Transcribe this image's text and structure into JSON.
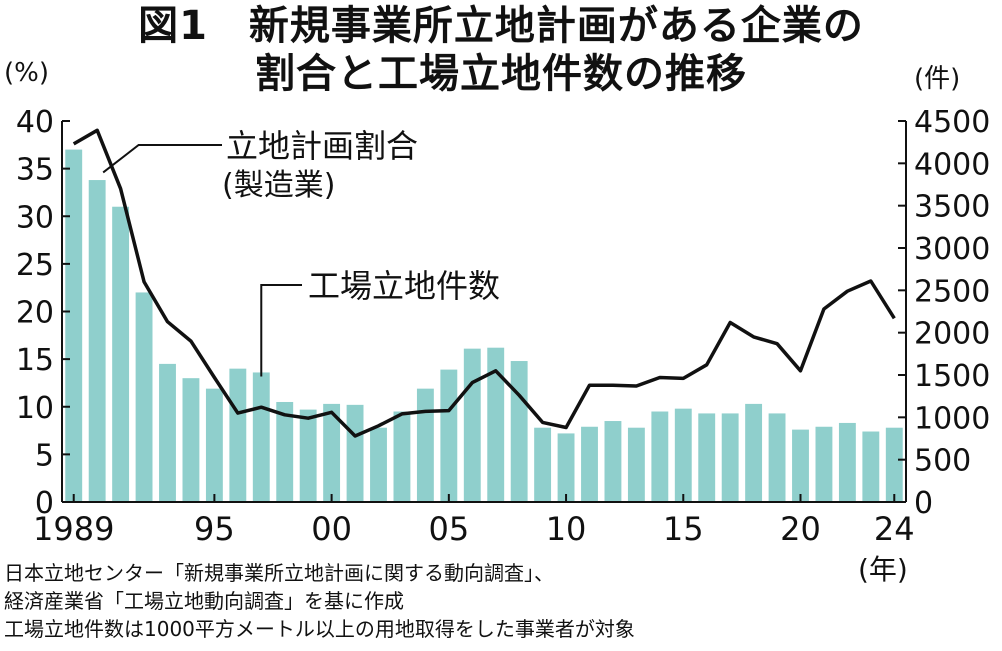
{
  "title_line1": "図1　新規事業所立地計画がある企業の",
  "title_line2": "割合と工場立地件数の推移",
  "left_unit": "(%)",
  "right_unit": "(件)",
  "year_unit": "(年)",
  "notes": [
    "日本立地センター「新規事業所立地計画に関する動向調査」、",
    "経済産業省「工場立地動向調査」を基に作成",
    "工場立地件数は1000平方メートル以上の用地取得をした事業者が対象"
  ],
  "colors": {
    "bar": "#8fcfcc",
    "line": "#111111",
    "axis": "#111111"
  },
  "chart_data": {
    "type": "bar+line",
    "x_tick_labels": [
      "1989",
      "95",
      "00",
      "05",
      "10",
      "15",
      "20",
      "24"
    ],
    "x_tick_years": [
      1989,
      1995,
      2000,
      2005,
      2010,
      2015,
      2020,
      2024
    ],
    "left_axis": {
      "ylim": [
        0,
        40
      ],
      "ticks": [
        0,
        5,
        10,
        15,
        20,
        25,
        30,
        35,
        40
      ]
    },
    "right_axis": {
      "ylim": [
        0,
        4500
      ],
      "ticks": [
        0,
        500,
        1000,
        1500,
        2000,
        2500,
        3000,
        3500,
        4000,
        4500
      ]
    },
    "series": [
      {
        "name": "立地計画割合\n(製造業)",
        "type": "bar",
        "axis": "left",
        "x": [
          1989,
          1990,
          1991,
          1992,
          1993,
          1994,
          1995,
          1996,
          1997,
          1998,
          1999,
          2000,
          2001,
          2002,
          2003,
          2004,
          2005,
          2006,
          2007,
          2008,
          2009,
          2010,
          2011,
          2012,
          2013,
          2014,
          2015,
          2016,
          2017,
          2018,
          2019,
          2020,
          2021,
          2022,
          2023,
          2024
        ],
        "values": [
          37.0,
          33.8,
          31.0,
          22.0,
          14.5,
          13.0,
          11.9,
          14.0,
          13.6,
          10.5,
          9.7,
          10.3,
          10.2,
          7.8,
          9.5,
          11.9,
          13.9,
          16.1,
          16.2,
          14.8,
          7.8,
          7.2,
          7.9,
          8.5,
          7.8,
          9.5,
          9.8,
          9.3,
          9.3,
          10.3,
          9.3,
          7.6,
          7.9,
          8.3,
          7.4,
          7.8
        ]
      },
      {
        "name": "工場立地件数",
        "type": "line",
        "axis": "right",
        "x": [
          1989,
          1990,
          1991,
          1992,
          1993,
          1994,
          1995,
          1996,
          1997,
          1998,
          1999,
          2000,
          2001,
          2002,
          2003,
          2004,
          2005,
          2006,
          2007,
          2008,
          2009,
          2010,
          2011,
          2012,
          2013,
          2014,
          2015,
          2016,
          2017,
          2018,
          2019,
          2020,
          2021,
          2022,
          2023,
          2024
        ],
        "values": [
          4230,
          4390,
          3700,
          2600,
          2130,
          1900,
          1470,
          1050,
          1120,
          1030,
          990,
          1060,
          780,
          900,
          1040,
          1070,
          1080,
          1410,
          1550,
          1260,
          940,
          880,
          1380,
          1380,
          1370,
          1470,
          1460,
          1620,
          2120,
          1950,
          1870,
          1550,
          2280,
          2490,
          2610,
          2170
        ]
      }
    ]
  }
}
